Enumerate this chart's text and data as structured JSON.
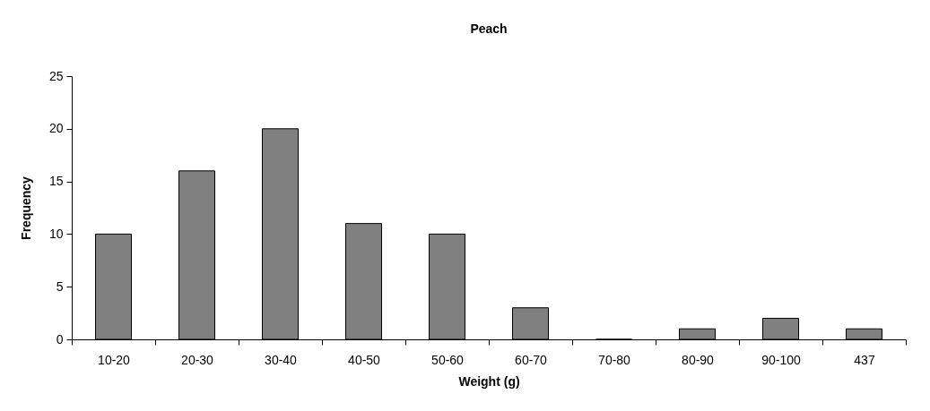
{
  "chart_data": {
    "type": "bar",
    "title": "Peach",
    "xlabel": "Weight (g)",
    "ylabel": "Frequency",
    "categories": [
      "10-20",
      "20-30",
      "30-40",
      "40-50",
      "50-60",
      "60-70",
      "70-80",
      "80-90",
      "90-100",
      "437"
    ],
    "values": [
      10,
      16,
      20,
      11,
      10,
      3,
      0,
      1,
      2,
      1
    ],
    "color": "#808080",
    "ylim": [
      0,
      25
    ],
    "yticks": [
      0,
      5,
      10,
      15,
      20,
      25
    ],
    "grid": false
  }
}
